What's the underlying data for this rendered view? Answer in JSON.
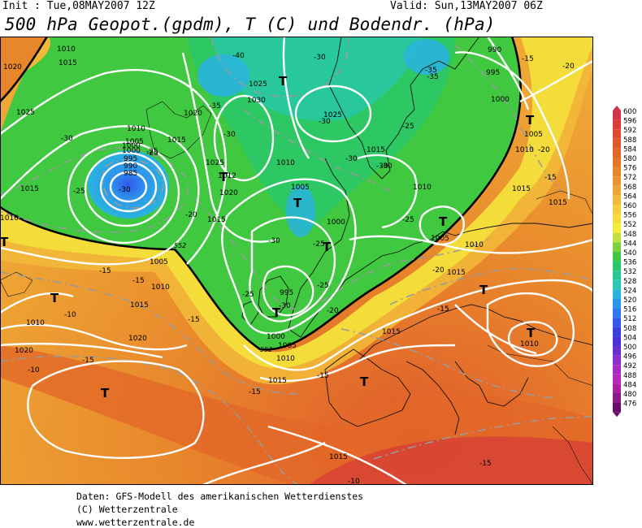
{
  "header": {
    "init": "Init : Tue,08MAY2007 12Z",
    "valid": "Valid: Sun,13MAY2007 06Z",
    "title": "500 hPa Geopot.(gpdm), T (C) und Bodendr. (hPa)"
  },
  "footer": {
    "line1": "Daten: GFS-Modell des amerikanischen Wetterdienstes",
    "line2": "(C) Wetterzentrale",
    "line3": "www.wetterzentrale.de"
  },
  "legend": {
    "levels": [
      "600",
      "596",
      "592",
      "588",
      "584",
      "580",
      "576",
      "572",
      "568",
      "564",
      "560",
      "556",
      "552",
      "548",
      "544",
      "540",
      "536",
      "532",
      "528",
      "524",
      "520",
      "516",
      "512",
      "508",
      "504",
      "500",
      "496",
      "492",
      "488",
      "484",
      "480",
      "476"
    ],
    "colors": [
      "#d2344a",
      "#dc3c36",
      "#de4a2e",
      "#e05a2a",
      "#e26828",
      "#e47628",
      "#e8862c",
      "#ea9630",
      "#eea634",
      "#f2b838",
      "#f6cc3c",
      "#f8dc3c",
      "#f4ec3a",
      "#c0e040",
      "#7cd23c",
      "#40c840",
      "#2ac86a",
      "#28c890",
      "#28cab6",
      "#2ab4dc",
      "#2c96ec",
      "#3078f0",
      "#3258ec",
      "#3840e0",
      "#4a32d6",
      "#6a2ed0",
      "#8c2ccc",
      "#a82ac6",
      "#b828b8",
      "#aa20a0",
      "#8a1888",
      "#6a0c6a"
    ]
  },
  "map": {
    "pressure_labels": [
      "1010",
      "1015",
      "1020",
      "1025",
      "1010",
      "1005",
      "1000",
      "995",
      "990",
      "985",
      "1012",
      "1025",
      "1020",
      "1015",
      "1030",
      "1025",
      "1010",
      "1005",
      "1000",
      "995",
      "1000",
      "1005",
      "1010",
      "1015",
      "990",
      "995",
      "1000",
      "1005",
      "1010",
      "1015",
      "1015",
      "1010",
      "1015",
      "1010",
      "1005",
      "1010",
      "1015",
      "1020",
      "1020",
      "1015",
      "1010",
      "1015",
      "1005",
      "1000",
      "1010",
      "1015",
      "1010",
      "1020",
      "1015",
      "1025",
      "1015"
    ],
    "temp_labels": [
      "-25",
      "-30",
      "-25",
      "-30",
      "-35",
      "-40",
      "-35",
      "-30",
      "-30",
      "-30",
      "-25",
      "-30",
      "-35",
      "-30",
      "-25",
      "-30",
      "-25",
      "-20",
      "-25",
      "-30",
      "-25",
      "-30",
      "-20",
      "-25",
      "-20",
      "-15",
      "-15",
      "-15",
      "-15",
      "-10",
      "-10",
      "-15",
      "-20",
      "-15",
      "-15",
      "-15",
      "-15",
      "-10",
      "-15",
      "-20"
    ],
    "isohypse_labels": [
      "552",
      "552"
    ],
    "low_marker": "T"
  },
  "colors": {
    "ocean_orange": "#e88a2e",
    "green_core": "#40c840",
    "blue_core": "#2a96e8",
    "isobar": "#ffffff",
    "isotherm": "#9a9a9a",
    "coast": "#000000"
  }
}
